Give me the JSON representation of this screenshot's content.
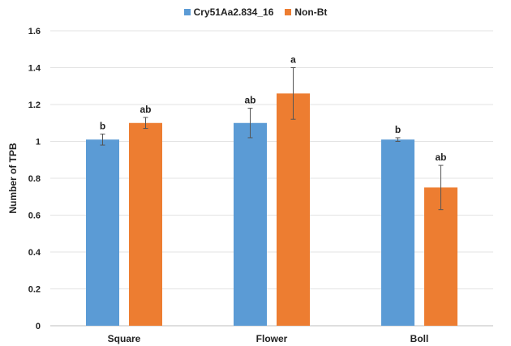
{
  "chart_data": {
    "type": "bar",
    "title": "",
    "xlabel": "",
    "ylabel": "Number of TPB",
    "categories": [
      "Square",
      "Flower",
      "Boll"
    ],
    "ylim": [
      0,
      1.6
    ],
    "yticks": [
      "0",
      "0.2",
      "0.4",
      "0.6",
      "0.8",
      "1",
      "1.2",
      "1.4",
      "1.6"
    ],
    "grid": true,
    "legend_position": "top-center",
    "series": [
      {
        "name": "Cry51Aa2.834_16",
        "color": "#5b9bd5",
        "values": [
          1.01,
          1.1,
          1.01
        ],
        "errors": [
          0.03,
          0.08,
          0.01
        ],
        "letters": [
          "b",
          "ab",
          "b"
        ]
      },
      {
        "name": "Non-Bt",
        "color": "#ed7d31",
        "values": [
          1.1,
          1.26,
          0.75
        ],
        "errors": [
          0.03,
          0.14,
          0.12
        ],
        "letters": [
          "ab",
          "a",
          "ab"
        ]
      }
    ]
  }
}
